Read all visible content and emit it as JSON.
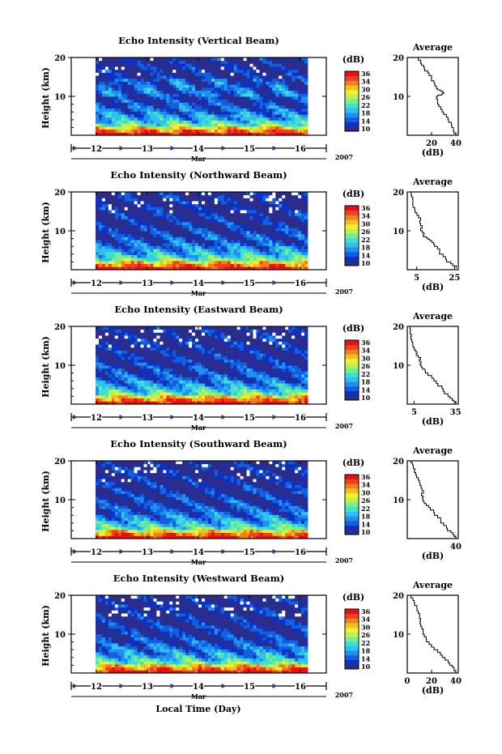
{
  "figure": {
    "xlabel": "Local Time (Day)",
    "month_label": "Mar",
    "year_label": "2007"
  },
  "colorscale": {
    "unit_label": "(dB)",
    "ticks": [
      "36",
      "34",
      "30",
      "26",
      "22",
      "18",
      "14",
      "10"
    ],
    "colors": [
      "#2a2d8c",
      "#1030c0",
      "#1060e0",
      "#2090f0",
      "#30c0f0",
      "#40e0d0",
      "#70f090",
      "#c0f050",
      "#f0f030",
      "#f0c020",
      "#f08020",
      "#f04020",
      "#e81010"
    ]
  },
  "chart_data": [
    {
      "type": "heatmap",
      "title": "Echo Intensity (Vertical Beam)",
      "ylabel": "Height (km)",
      "x_ticks": [
        "12",
        "13",
        "14",
        "15",
        "16"
      ],
      "y_ticks": [
        "20",
        "10"
      ],
      "zlim": [
        10,
        36
      ],
      "average_profile": {
        "title": "Average",
        "xlabel": "(dB)",
        "x_ticks": [
          "20",
          "40"
        ],
        "y_ticks": [
          "20",
          "10"
        ],
        "xlim": [
          0,
          42
        ],
        "profile": [
          [
            40,
            0.5
          ],
          [
            38,
            2
          ],
          [
            34,
            4
          ],
          [
            30,
            6
          ],
          [
            26,
            8
          ],
          [
            24,
            10
          ],
          [
            30,
            11
          ],
          [
            25,
            12
          ],
          [
            22,
            14
          ],
          [
            18,
            16
          ],
          [
            14,
            17.5
          ],
          [
            11,
            19
          ],
          [
            9,
            20
          ]
        ]
      }
    },
    {
      "type": "heatmap",
      "title": "Echo Intensity (Northward Beam)",
      "ylabel": "Height (km)",
      "x_ticks": [
        "12",
        "13",
        "14",
        "15",
        "16"
      ],
      "y_ticks": [
        "20",
        "10"
      ],
      "zlim": [
        10,
        36
      ],
      "average_profile": {
        "title": "Average",
        "xlabel": "(dB)",
        "x_ticks": [
          "5",
          "25"
        ],
        "y_ticks": [
          "20",
          "10"
        ],
        "xlim": [
          0,
          27
        ],
        "profile": [
          [
            26,
            0.5
          ],
          [
            23,
            2
          ],
          [
            19,
            4
          ],
          [
            16,
            6
          ],
          [
            13,
            7.5
          ],
          [
            10,
            8.5
          ],
          [
            8,
            10
          ],
          [
            7,
            12
          ],
          [
            6,
            14
          ],
          [
            4,
            16
          ],
          [
            3,
            18
          ],
          [
            2,
            20
          ]
        ]
      }
    },
    {
      "type": "heatmap",
      "title": "Echo Intensity (Eastward Beam)",
      "ylabel": "Height (km)",
      "x_ticks": [
        "12",
        "13",
        "14",
        "15",
        "16"
      ],
      "y_ticks": [
        "20",
        "10"
      ],
      "zlim": [
        10,
        36
      ],
      "average_profile": {
        "title": "Average",
        "xlabel": "(dB)",
        "x_ticks": [
          "5",
          "35"
        ],
        "y_ticks": [
          "20",
          "10"
        ],
        "xlim": [
          0,
          37
        ],
        "profile": [
          [
            36,
            0.5
          ],
          [
            31,
            2
          ],
          [
            26,
            4
          ],
          [
            21,
            6
          ],
          [
            15,
            8
          ],
          [
            11,
            9.5
          ],
          [
            10,
            11
          ],
          [
            8,
            12.5
          ],
          [
            6,
            14
          ],
          [
            4,
            16
          ],
          [
            3,
            18
          ],
          [
            2,
            20
          ]
        ]
      }
    },
    {
      "type": "heatmap",
      "title": "Echo Intensity (Southward Beam)",
      "ylabel": "Height (km)",
      "x_ticks": [
        "12",
        "13",
        "14",
        "15",
        "16"
      ],
      "y_ticks": [
        "20",
        "10"
      ],
      "zlim": [
        10,
        36
      ],
      "average_profile": {
        "title": "Average",
        "xlabel": "(dB)",
        "x_ticks": [
          "40"
        ],
        "y_ticks": [
          "20",
          "10"
        ],
        "xlim": [
          0,
          42
        ],
        "profile": [
          [
            40,
            0.5
          ],
          [
            36,
            2
          ],
          [
            30,
            4
          ],
          [
            25,
            6
          ],
          [
            19,
            8
          ],
          [
            14,
            9.5
          ],
          [
            13,
            11
          ],
          [
            12,
            13
          ],
          [
            10,
            15
          ],
          [
            7,
            17
          ],
          [
            5,
            18.5
          ],
          [
            3,
            20
          ]
        ]
      }
    },
    {
      "type": "heatmap",
      "title": "Echo Intensity (Westward Beam)",
      "ylabel": "Height (km)",
      "x_ticks": [
        "12",
        "13",
        "14",
        "15",
        "16"
      ],
      "y_ticks": [
        "20",
        "10"
      ],
      "zlim": [
        10,
        36
      ],
      "average_profile": {
        "title": "Average",
        "xlabel": "(dB)",
        "x_ticks": [
          "0",
          "20",
          "40"
        ],
        "y_ticks": [
          "20",
          "10"
        ],
        "xlim": [
          0,
          42
        ],
        "profile": [
          [
            40,
            0.5
          ],
          [
            37,
            2
          ],
          [
            31,
            4
          ],
          [
            25,
            6
          ],
          [
            18,
            8
          ],
          [
            14,
            10
          ],
          [
            12,
            12
          ],
          [
            11,
            14
          ],
          [
            9,
            16
          ],
          [
            6,
            18
          ],
          [
            3,
            20
          ]
        ]
      }
    }
  ]
}
